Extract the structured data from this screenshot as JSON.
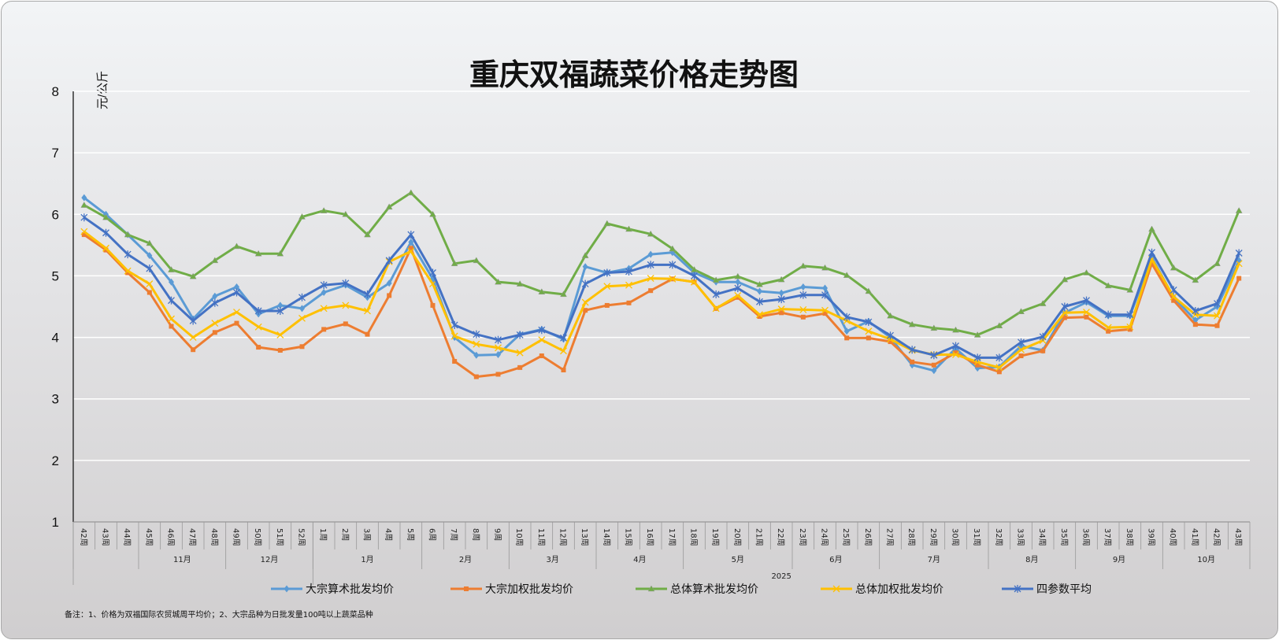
{
  "chart_data": {
    "type": "line",
    "title": "重庆双福蔬菜价格走势图",
    "ylabel": "元/公斤",
    "xlabel": "",
    "ylim": [
      1,
      8
    ],
    "yticks": [
      "1",
      "2",
      "3",
      "4",
      "5",
      "6",
      "7",
      "8"
    ],
    "grid": true,
    "legend_position": "bottom",
    "year_label": "2025",
    "categories": [
      "42周",
      "43周",
      "44周",
      "45周",
      "46周",
      "47周",
      "48周",
      "49周",
      "50周",
      "51周",
      "52周",
      "1周",
      "2周",
      "3周",
      "4周",
      "5周",
      "6周",
      "7周",
      "8周",
      "9周",
      "10周",
      "11周",
      "12周",
      "13周",
      "14周",
      "15周",
      "16周",
      "17周",
      "18周",
      "19周",
      "20周",
      "21周",
      "22周",
      "23周",
      "24周",
      "25周",
      "26周",
      "27周",
      "28周",
      "29周",
      "30周",
      "31周",
      "32周",
      "33周",
      "34周",
      "35周",
      "36周",
      "37周",
      "38周",
      "39周",
      "40周",
      "41周",
      "42周",
      "43周"
    ],
    "month_groups": [
      {
        "label": "",
        "span": 3
      },
      {
        "label": "11月",
        "span": 4
      },
      {
        "label": "12月",
        "span": 4
      },
      {
        "label": "1月",
        "span": 5
      },
      {
        "label": "2月",
        "span": 4
      },
      {
        "label": "3月",
        "span": 4
      },
      {
        "label": "4月",
        "span": 4
      },
      {
        "label": "5月",
        "span": 5
      },
      {
        "label": "6月",
        "span": 4
      },
      {
        "label": "7月",
        "span": 5
      },
      {
        "label": "8月",
        "span": 4
      },
      {
        "label": "9月",
        "span": 4
      },
      {
        "label": "10月",
        "span": 4
      }
    ],
    "series": [
      {
        "name": "大宗算术批发均价",
        "color": "#5b9bd5",
        "marker": "diamond",
        "values": [
          6.27,
          6.0,
          5.67,
          5.33,
          4.9,
          4.3,
          4.67,
          4.82,
          4.38,
          4.52,
          4.47,
          4.73,
          4.85,
          4.65,
          4.88,
          5.55,
          4.95,
          4.0,
          3.71,
          3.72,
          4.05,
          4.13,
          3.97,
          5.15,
          5.05,
          5.12,
          5.35,
          5.38,
          5.05,
          4.9,
          4.9,
          4.75,
          4.72,
          4.82,
          4.8,
          4.1,
          4.26,
          4.0,
          3.55,
          3.46,
          3.82,
          3.5,
          3.52,
          3.86,
          3.79,
          4.4,
          4.57,
          4.35,
          4.35,
          5.3,
          4.65,
          4.28,
          4.5,
          5.25
        ]
      },
      {
        "name": "大宗加权批发均价",
        "color": "#ed7d31",
        "marker": "square",
        "values": [
          5.67,
          5.42,
          5.05,
          4.73,
          4.18,
          3.8,
          4.08,
          4.23,
          3.84,
          3.79,
          3.85,
          4.13,
          4.22,
          4.05,
          4.68,
          5.45,
          4.52,
          3.61,
          3.36,
          3.4,
          3.51,
          3.7,
          3.47,
          4.44,
          4.52,
          4.56,
          4.76,
          4.95,
          4.9,
          4.47,
          4.65,
          4.34,
          4.4,
          4.33,
          4.39,
          3.99,
          3.99,
          3.93,
          3.6,
          3.55,
          3.75,
          3.55,
          3.44,
          3.7,
          3.78,
          4.32,
          4.33,
          4.1,
          4.13,
          5.2,
          4.6,
          4.21,
          4.19,
          4.96
        ]
      },
      {
        "name": "总体算术批发均价",
        "color": "#70ad47",
        "marker": "triangle",
        "values": [
          6.15,
          5.95,
          5.67,
          5.53,
          5.1,
          4.99,
          5.25,
          5.48,
          5.36,
          5.36,
          5.96,
          6.06,
          6.0,
          5.67,
          6.12,
          6.35,
          6.0,
          5.2,
          5.25,
          4.9,
          4.87,
          4.74,
          4.7,
          5.33,
          5.85,
          5.76,
          5.68,
          5.44,
          5.1,
          4.93,
          4.99,
          4.86,
          4.94,
          5.16,
          5.13,
          5.01,
          4.75,
          4.35,
          4.21,
          4.15,
          4.12,
          4.04,
          4.19,
          4.42,
          4.55,
          4.94,
          5.05,
          4.84,
          4.77,
          5.76,
          5.13,
          4.93,
          5.2,
          6.06
        ]
      },
      {
        "name": "总体加权批发均价",
        "color": "#ffc000",
        "marker": "x",
        "values": [
          5.72,
          5.45,
          5.08,
          4.87,
          4.3,
          4.0,
          4.23,
          4.41,
          4.17,
          4.04,
          4.31,
          4.47,
          4.52,
          4.43,
          5.23,
          5.4,
          4.87,
          4.02,
          3.89,
          3.83,
          3.75,
          3.96,
          3.78,
          4.57,
          4.83,
          4.85,
          4.96,
          4.95,
          4.9,
          4.47,
          4.68,
          4.37,
          4.46,
          4.45,
          4.44,
          4.27,
          4.1,
          3.97,
          3.79,
          3.72,
          3.72,
          3.6,
          3.51,
          3.8,
          3.95,
          4.4,
          4.41,
          4.16,
          4.17,
          5.27,
          4.66,
          4.37,
          4.35,
          5.2
        ]
      },
      {
        "name": "四参数平均",
        "color": "#4472c4",
        "marker": "star",
        "values": [
          5.95,
          5.7,
          5.35,
          5.12,
          4.6,
          4.27,
          4.56,
          4.73,
          4.43,
          4.43,
          4.65,
          4.85,
          4.88,
          4.7,
          5.25,
          5.67,
          5.05,
          4.2,
          4.05,
          3.96,
          4.04,
          4.12,
          3.99,
          4.87,
          5.05,
          5.07,
          5.18,
          5.18,
          5.0,
          4.7,
          4.8,
          4.58,
          4.62,
          4.69,
          4.69,
          4.33,
          4.25,
          4.03,
          3.8,
          3.71,
          3.86,
          3.67,
          3.67,
          3.92,
          4.01,
          4.5,
          4.6,
          4.37,
          4.37,
          5.38,
          4.77,
          4.43,
          4.55,
          5.37
        ]
      }
    ],
    "note": "备注：1、价格为双福国际农贸城周平均价；2、大宗品种为日批发量100吨以上蔬菜品种"
  }
}
